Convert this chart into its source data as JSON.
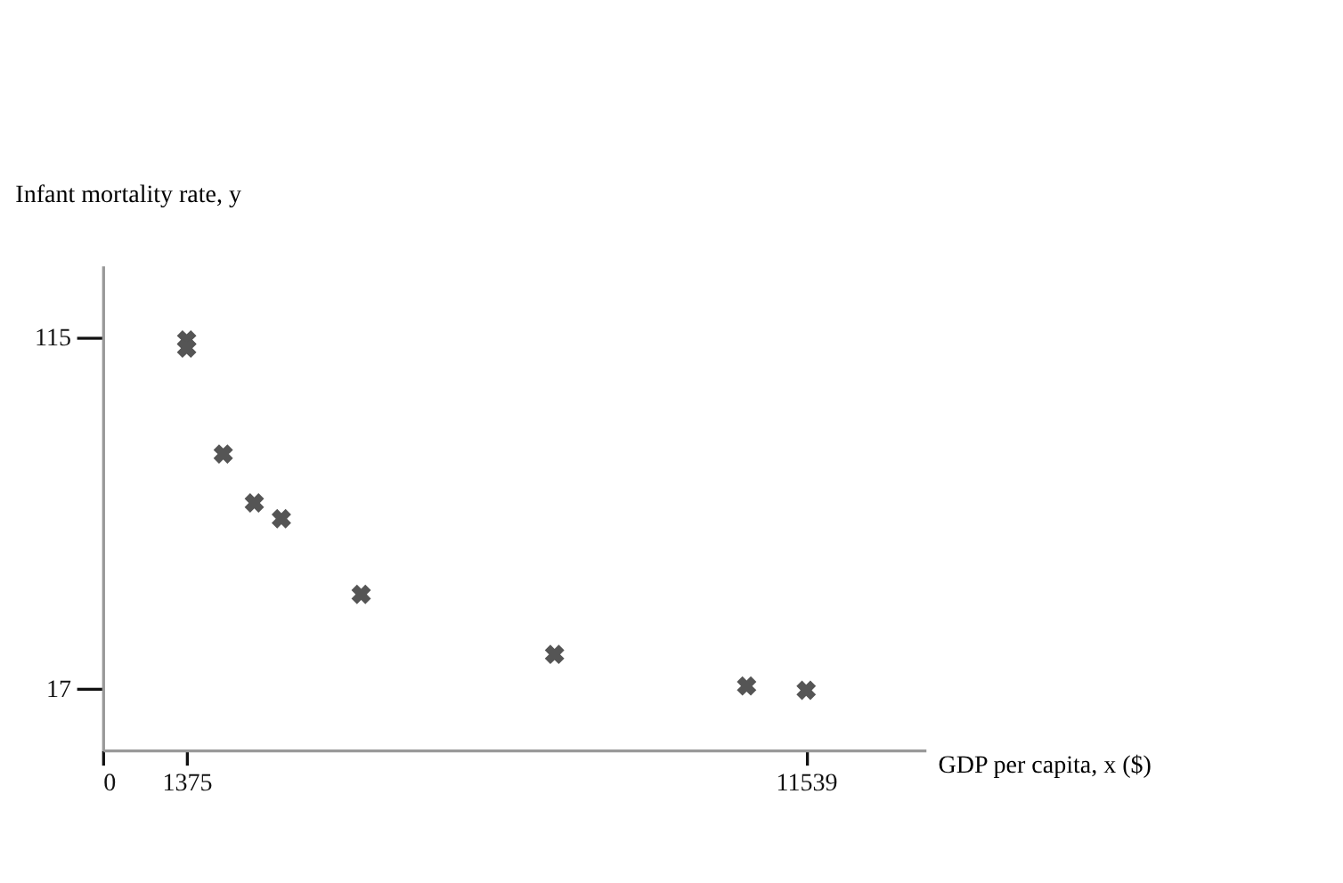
{
  "chart_data": {
    "type": "scatter",
    "xlabel": "GDP per capita, x ($)",
    "ylabel": "Infant mortality rate, y",
    "x": [
      1375,
      1375,
      1975,
      2485,
      2929,
      4238,
      7411,
      10562,
      11539
    ],
    "series": [
      {
        "color": "#555555",
        "values": [
          114.3,
          112,
          82.5,
          68.9,
          64.5,
          43.4,
          26.7,
          17.9,
          16.7
        ]
      }
    ],
    "xlim": [
      0,
      13500
    ],
    "ylim": [
      0,
      135
    ],
    "xticks": [
      0,
      1375,
      11539
    ],
    "yticks": [
      17,
      115
    ],
    "marker": "cross",
    "grid": false,
    "legend": false
  }
}
